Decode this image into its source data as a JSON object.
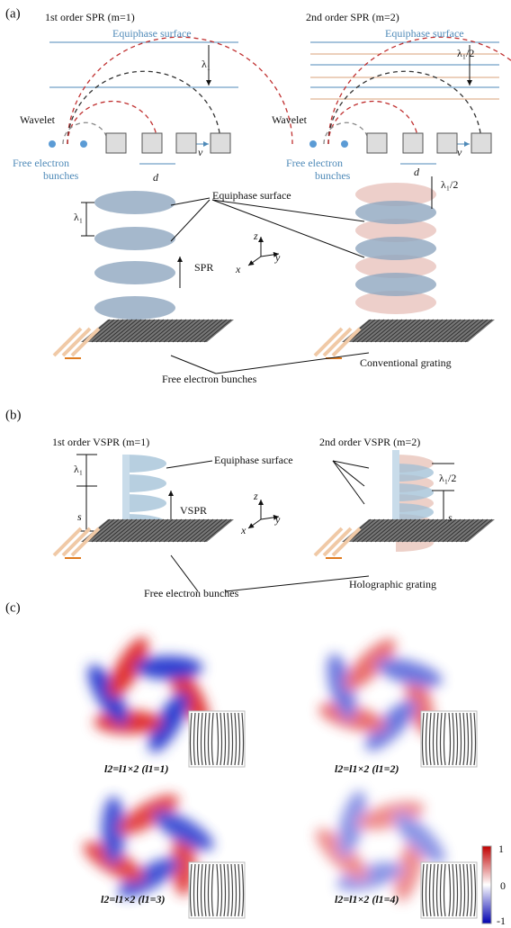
{
  "panel_a": {
    "label": "(a)",
    "left": {
      "title": "1st order SPR (m=1)",
      "surface": "Equiphase surface",
      "spacing": "λ₁",
      "wavelet": "Wavelet",
      "bunches_1": "Free electron",
      "bunches_2": "bunches",
      "velocity": "v",
      "period": "d"
    },
    "right": {
      "title": "2nd order SPR (m=2)",
      "surface": "Equiphase surface",
      "spacing": "λ₁/2",
      "wavelet": "Wavelet",
      "bunches_1": "Free electron",
      "bunches_2": "bunches",
      "velocity": "v",
      "period": "d"
    },
    "lower": {
      "spacing_left": "λ₁",
      "spacing_right": "λ₁/2",
      "surface": "Equiphase surface",
      "arrow": "SPR",
      "axis_z": "z",
      "axis_y": "y",
      "axis_x": "x",
      "bunches": "Free electron bunches",
      "grating": "Conventional grating"
    }
  },
  "panel_b": {
    "label": "(b)",
    "left_title": "1st order VSPR (m=1)",
    "right_title": "2nd order VSPR (m=2)",
    "surface": "Equiphase surface",
    "spacing_left": "λ₁",
    "pitch_left": "s",
    "arrow": "VSPR",
    "spacing_right": "λ₁/2",
    "pitch_right": "s",
    "axis_z": "z",
    "axis_y": "y",
    "axis_x": "x",
    "bunches": "Free electron bunches",
    "grating": "Holographic grating"
  },
  "panel_c": {
    "label": "(c)",
    "captions": [
      "l2=l1×2 (l1=1)",
      "l2=l1×2 (l1=2)",
      "l2=l1×2 (l1=3)",
      "l2=l1×2 (l1=4)"
    ],
    "colorbar_ticks": [
      1,
      0,
      -1
    ]
  }
}
